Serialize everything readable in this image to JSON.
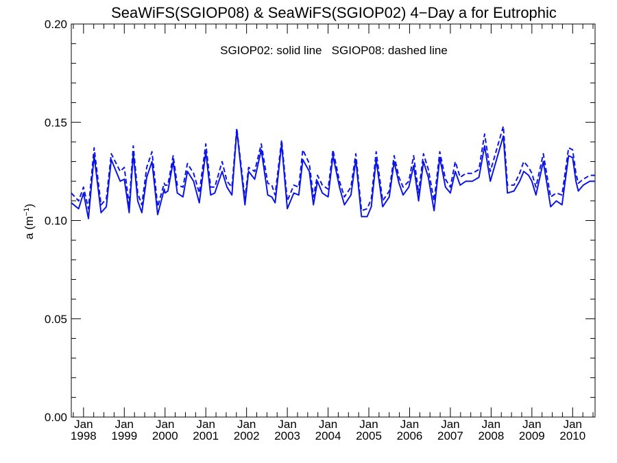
{
  "chart_data": {
    "type": "line",
    "title": "SeaWiFS(SGIOP08) & SeaWiFS(SGIOP02) 4−Day a for Eutrophic",
    "annotation": "SGIOP02: solid line   SGIOP08: dashed line",
    "ylabel_main": "a (m",
    "ylabel_sup": "−1",
    "ylabel_close": ")",
    "xlim": [
      1997.7,
      2010.55
    ],
    "ylim": [
      0.0,
      0.2
    ],
    "y_ticks": [
      {
        "value": 0.0,
        "label": "0.00"
      },
      {
        "value": 0.05,
        "label": "0.05"
      },
      {
        "value": 0.1,
        "label": "0.10"
      },
      {
        "value": 0.15,
        "label": "0.15"
      },
      {
        "value": 0.2,
        "label": "0.20"
      }
    ],
    "x_ticks": [
      {
        "value": 1998,
        "month": "Jan",
        "year": "1998"
      },
      {
        "value": 1999,
        "month": "Jan",
        "year": "1999"
      },
      {
        "value": 2000,
        "month": "Jan",
        "year": "2000"
      },
      {
        "value": 2001,
        "month": "Jan",
        "year": "2001"
      },
      {
        "value": 2002,
        "month": "Jan",
        "year": "2002"
      },
      {
        "value": 2003,
        "month": "Jan",
        "year": "2003"
      },
      {
        "value": 2004,
        "month": "Jan",
        "year": "2004"
      },
      {
        "value": 2005,
        "month": "Jan",
        "year": "2005"
      },
      {
        "value": 2006,
        "month": "Jan",
        "year": "2006"
      },
      {
        "value": 2007,
        "month": "Jan",
        "year": "2007"
      },
      {
        "value": 2008,
        "month": "Jan",
        "year": "2008"
      },
      {
        "value": 2009,
        "month": "Jan",
        "year": "2009"
      },
      {
        "value": 2010,
        "month": "Jan",
        "year": "2010"
      }
    ],
    "line_color": "#0a14e6",
    "series": [
      {
        "style": "solid",
        "x": [
          1997.7,
          1997.88,
          1998.0,
          1998.12,
          1998.26,
          1998.43,
          1998.56,
          1998.68,
          1998.9,
          1999.0,
          1999.12,
          1999.22,
          1999.33,
          1999.43,
          1999.55,
          1999.68,
          1999.82,
          1999.98,
          2000.0,
          2000.07,
          2000.2,
          2000.3,
          2000.44,
          2000.55,
          2000.7,
          2000.84,
          2001.0,
          2001.12,
          2001.22,
          2001.4,
          2001.52,
          2001.64,
          2001.76,
          2001.96,
          2002.05,
          2002.2,
          2002.36,
          2002.52,
          2002.62,
          2002.7,
          2002.86,
          2003.0,
          2003.16,
          2003.28,
          2003.38,
          2003.54,
          2003.64,
          2003.74,
          2003.86,
          2004.0,
          2004.12,
          2004.28,
          2004.4,
          2004.56,
          2004.68,
          2004.82,
          2004.96,
          2005.06,
          2005.18,
          2005.34,
          2005.5,
          2005.62,
          2005.74,
          2005.84,
          2005.98,
          2006.1,
          2006.22,
          2006.34,
          2006.46,
          2006.6,
          2006.74,
          2006.88,
          2007.0,
          2007.12,
          2007.24,
          2007.38,
          2007.54,
          2007.7,
          2007.84,
          2007.98,
          2008.3,
          2008.4,
          2008.56,
          2008.7,
          2008.8,
          2008.92,
          2009.0,
          2009.1,
          2009.28,
          2009.46,
          2009.6,
          2009.74,
          2009.9,
          2010.0,
          2010.08,
          2010.14,
          2010.26,
          2010.42,
          2010.55
        ],
        "y": [
          0.109,
          0.106,
          0.114,
          0.101,
          0.133,
          0.104,
          0.107,
          0.131,
          0.12,
          0.121,
          0.104,
          0.134,
          0.11,
          0.104,
          0.122,
          0.13,
          0.103,
          0.116,
          0.114,
          0.115,
          0.13,
          0.114,
          0.112,
          0.125,
          0.12,
          0.109,
          0.135,
          0.113,
          0.114,
          0.125,
          0.117,
          0.113,
          0.146,
          0.108,
          0.125,
          0.121,
          0.136,
          0.113,
          0.112,
          0.109,
          0.139,
          0.106,
          0.114,
          0.113,
          0.131,
          0.125,
          0.108,
          0.12,
          0.114,
          0.112,
          0.133,
          0.117,
          0.108,
          0.113,
          0.131,
          0.102,
          0.102,
          0.107,
          0.131,
          0.107,
          0.112,
          0.13,
          0.119,
          0.113,
          0.117,
          0.128,
          0.11,
          0.13,
          0.122,
          0.105,
          0.132,
          0.117,
          0.114,
          0.125,
          0.118,
          0.12,
          0.12,
          0.122,
          0.138,
          0.12,
          0.143,
          0.114,
          0.115,
          0.12,
          0.125,
          0.123,
          0.12,
          0.113,
          0.13,
          0.107,
          0.11,
          0.108,
          0.133,
          0.132,
          0.12,
          0.115,
          0.118,
          0.12,
          0.12
        ]
      },
      {
        "style": "dashed",
        "x": [
          1997.7,
          1997.88,
          1998.0,
          1998.12,
          1998.26,
          1998.43,
          1998.56,
          1998.68,
          1998.9,
          1999.0,
          1999.12,
          1999.22,
          1999.33,
          1999.43,
          1999.55,
          1999.68,
          1999.82,
          1999.98,
          2000.0,
          2000.07,
          2000.2,
          2000.3,
          2000.44,
          2000.55,
          2000.7,
          2000.84,
          2001.0,
          2001.12,
          2001.22,
          2001.4,
          2001.52,
          2001.64,
          2001.76,
          2001.96,
          2002.05,
          2002.2,
          2002.36,
          2002.52,
          2002.62,
          2002.7,
          2002.86,
          2003.0,
          2003.16,
          2003.28,
          2003.38,
          2003.54,
          2003.64,
          2003.74,
          2003.86,
          2004.0,
          2004.12,
          2004.28,
          2004.4,
          2004.56,
          2004.68,
          2004.82,
          2004.96,
          2005.06,
          2005.18,
          2005.34,
          2005.5,
          2005.62,
          2005.74,
          2005.84,
          2005.98,
          2006.1,
          2006.22,
          2006.34,
          2006.46,
          2006.6,
          2006.74,
          2006.88,
          2007.0,
          2007.12,
          2007.24,
          2007.38,
          2007.54,
          2007.7,
          2007.84,
          2007.98,
          2008.3,
          2008.4,
          2008.56,
          2008.7,
          2008.8,
          2008.92,
          2009.0,
          2009.1,
          2009.28,
          2009.46,
          2009.6,
          2009.74,
          2009.9,
          2010.0,
          2010.08,
          2010.14,
          2010.26,
          2010.42,
          2010.55
        ],
        "y": [
          0.114,
          0.11,
          0.117,
          0.106,
          0.137,
          0.108,
          0.111,
          0.134,
          0.125,
          0.127,
          0.108,
          0.138,
          0.114,
          0.108,
          0.127,
          0.135,
          0.107,
          0.119,
          0.118,
          0.118,
          0.133,
          0.118,
          0.117,
          0.129,
          0.124,
          0.114,
          0.139,
          0.117,
          0.117,
          0.13,
          0.12,
          0.117,
          0.147,
          0.111,
          0.127,
          0.125,
          0.139,
          0.119,
          0.118,
          0.113,
          0.141,
          0.11,
          0.118,
          0.117,
          0.136,
          0.129,
          0.112,
          0.123,
          0.118,
          0.116,
          0.136,
          0.12,
          0.112,
          0.117,
          0.134,
          0.105,
          0.106,
          0.111,
          0.135,
          0.11,
          0.115,
          0.133,
          0.122,
          0.117,
          0.12,
          0.133,
          0.114,
          0.134,
          0.126,
          0.11,
          0.135,
          0.121,
          0.117,
          0.13,
          0.122,
          0.124,
          0.124,
          0.126,
          0.144,
          0.125,
          0.148,
          0.118,
          0.118,
          0.124,
          0.13,
          0.127,
          0.124,
          0.117,
          0.134,
          0.112,
          0.114,
          0.113,
          0.137,
          0.136,
          0.124,
          0.119,
          0.121,
          0.123,
          0.123
        ]
      }
    ]
  }
}
